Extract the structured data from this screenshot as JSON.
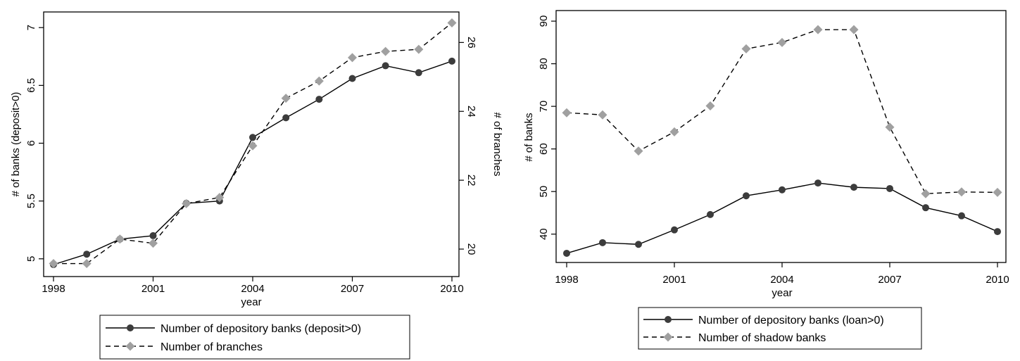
{
  "chart_data": [
    {
      "type": "line",
      "title": "",
      "xlabel": "year",
      "ylabel": "# of banks (deposit>0)",
      "ylabel_right": "# of branches",
      "x": [
        1998,
        1999,
        2000,
        2001,
        2002,
        2003,
        2004,
        2005,
        2006,
        2007,
        2008,
        2009,
        2010
      ],
      "xlim": [
        1998,
        2010
      ],
      "x_ticks": [
        "1998",
        "2001",
        "2004",
        "2007",
        "2010"
      ],
      "x_tick_values": [
        1998,
        2001,
        2004,
        2007,
        2010
      ],
      "ylim": [
        4.95,
        7.05
      ],
      "y_ticks": [
        "5",
        "5.5",
        "6",
        "6.5",
        "7"
      ],
      "y_tick_values": [
        5,
        5.5,
        6,
        6.5,
        7
      ],
      "ylim_right": [
        19.55,
        26.6
      ],
      "y_ticks_right": [
        "20",
        "22",
        "24",
        "26"
      ],
      "y_tick_values_right": [
        20,
        22,
        24,
        26
      ],
      "grid": false,
      "legend_position": "bottom",
      "series": [
        {
          "name": "Number of depository banks (deposit>0)",
          "axis": "left",
          "marker": "circle",
          "line": "solid",
          "color": "#3c3c3c",
          "values": [
            4.95,
            5.04,
            5.17,
            5.2,
            5.48,
            5.5,
            6.05,
            6.22,
            6.38,
            6.56,
            6.67,
            6.61,
            6.71
          ]
        },
        {
          "name": "Number of branches",
          "axis": "right",
          "marker": "diamond",
          "line": "dashed",
          "color": "#a0a0a0",
          "values": [
            19.58,
            19.58,
            20.29,
            20.17,
            21.32,
            21.5,
            23.0,
            24.38,
            24.88,
            25.56,
            25.74,
            25.8,
            26.57
          ]
        }
      ]
    },
    {
      "type": "line",
      "title": "",
      "xlabel": "year",
      "ylabel": "# of banks",
      "x": [
        1998,
        1999,
        2000,
        2001,
        2002,
        2003,
        2004,
        2005,
        2006,
        2007,
        2008,
        2009,
        2010
      ],
      "xlim": [
        1998,
        2010
      ],
      "x_ticks": [
        "1998",
        "2001",
        "2004",
        "2007",
        "2010"
      ],
      "x_tick_values": [
        1998,
        2001,
        2004,
        2007,
        2010
      ],
      "ylim": [
        34.5,
        91
      ],
      "y_ticks": [
        "40",
        "50",
        "60",
        "70",
        "80",
        "90"
      ],
      "y_tick_values": [
        40,
        50,
        60,
        70,
        80,
        90
      ],
      "grid": false,
      "legend_position": "bottom",
      "series": [
        {
          "name": "Number of depository banks (loan>0)",
          "marker": "circle",
          "line": "solid",
          "color": "#3c3c3c",
          "values": [
            35.5,
            38.0,
            37.6,
            41.0,
            44.6,
            49.0,
            50.4,
            52.0,
            51.0,
            50.7,
            46.2,
            44.3,
            40.6
          ]
        },
        {
          "name": "Number of shadow banks",
          "marker": "diamond",
          "line": "dashed",
          "color": "#a0a0a0",
          "values": [
            68.5,
            68.0,
            59.5,
            64.0,
            70.1,
            83.5,
            85.0,
            88.0,
            88.0,
            65.1,
            49.5,
            49.9,
            49.8
          ]
        }
      ]
    }
  ]
}
